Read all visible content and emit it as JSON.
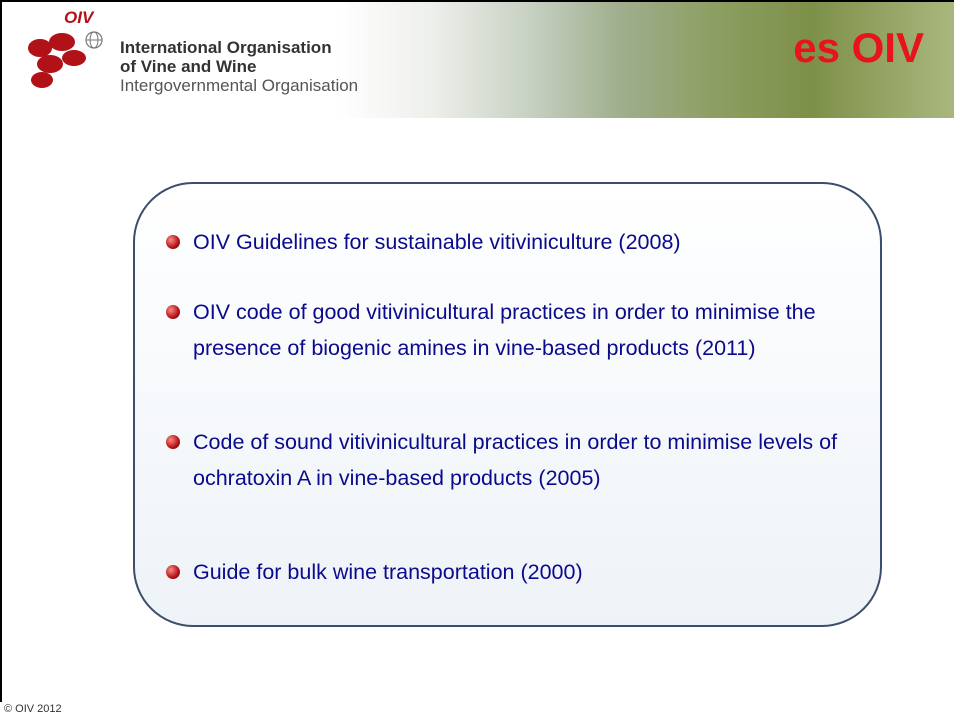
{
  "header": {
    "logo_text": "OIV",
    "org_lines": [
      "International Organisation",
      "of Vine and Wine",
      "Intergovernmental Organisation"
    ],
    "banner": "es OIV"
  },
  "items": [
    "OIV Guidelines for sustainable vitiviniculture (2008)",
    "OIV code of good vitivinicultural practices in order to minimise the presence of biogenic amines in vine-based products (2011)",
    "Code of sound vitivinicultural practices in order to minimise levels of ochratoxin A in vine-based products (2005)",
    "Guide for bulk wine transportation (2000)"
  ],
  "footer": "© OIV 2012"
}
